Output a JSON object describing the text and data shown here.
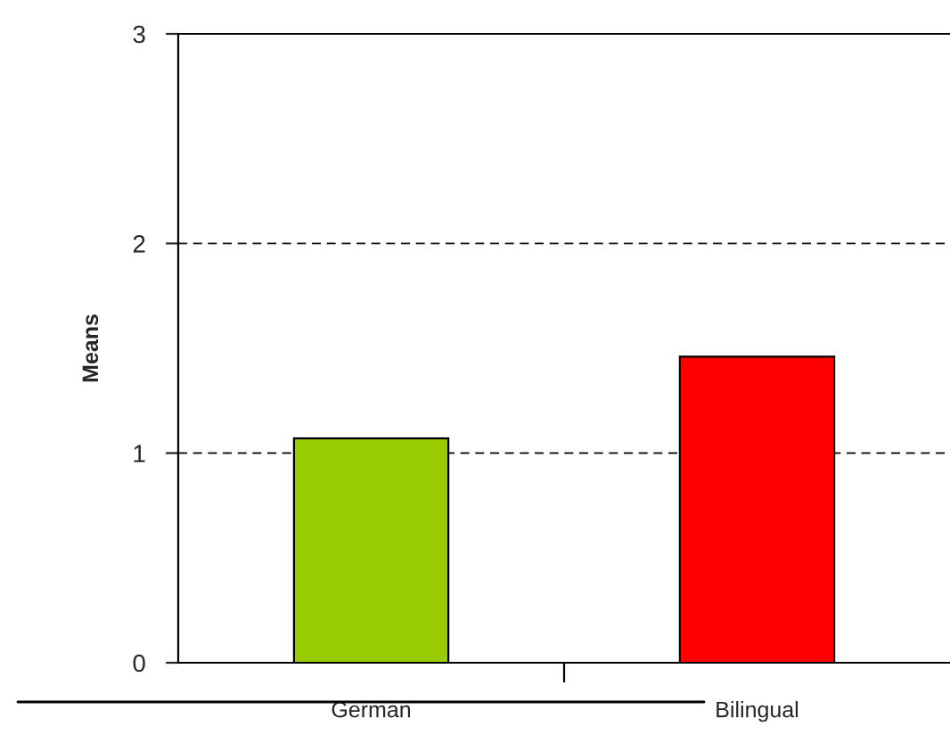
{
  "chart_data": {
    "type": "bar",
    "ylabel": "Means",
    "categories": [
      "German",
      "Bilingual"
    ],
    "values": [
      1.07,
      1.46
    ],
    "colors": [
      "#99cc00",
      "#ff0000"
    ],
    "ylim": [
      0,
      3
    ],
    "yticks": [
      0,
      1,
      2,
      3
    ],
    "grid": "y",
    "line_style": "dashed"
  }
}
